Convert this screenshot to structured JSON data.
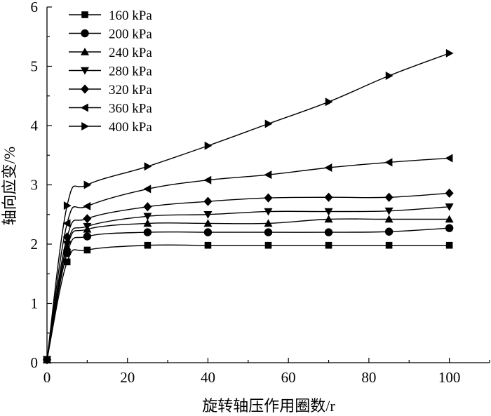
{
  "chart_data": {
    "type": "line",
    "xlabel": "旋转轴压作用圈数/r",
    "ylabel": "轴向应变/%",
    "xlim": [
      0,
      110
    ],
    "ylim": [
      0,
      6
    ],
    "xticks": [
      0,
      20,
      40,
      60,
      80,
      100
    ],
    "yticks": [
      0,
      1,
      2,
      3,
      4,
      5,
      6
    ],
    "x": [
      0,
      5,
      10,
      25,
      40,
      55,
      70,
      85,
      100
    ],
    "legend_position": "top-left",
    "series": [
      {
        "name": "160 kPa",
        "marker": "square",
        "values": [
          0.05,
          1.7,
          1.9,
          1.98,
          1.98,
          1.98,
          1.98,
          1.98,
          1.98
        ]
      },
      {
        "name": "200 kPa",
        "marker": "circle",
        "values": [
          0.05,
          1.85,
          2.13,
          2.2,
          2.2,
          2.2,
          2.2,
          2.21,
          2.27
        ]
      },
      {
        "name": "240 kPa",
        "marker": "triangle-up",
        "values": [
          0.05,
          1.95,
          2.25,
          2.35,
          2.35,
          2.35,
          2.42,
          2.42,
          2.42
        ]
      },
      {
        "name": "280 kPa",
        "marker": "triangle-down",
        "values": [
          0.05,
          2.0,
          2.3,
          2.47,
          2.5,
          2.55,
          2.55,
          2.56,
          2.63
        ]
      },
      {
        "name": "320 kPa",
        "marker": "diamond",
        "values": [
          0.05,
          2.12,
          2.43,
          2.63,
          2.72,
          2.78,
          2.79,
          2.79,
          2.86
        ]
      },
      {
        "name": "360 kPa",
        "marker": "triangle-left",
        "values": [
          0.05,
          2.35,
          2.64,
          2.93,
          3.08,
          3.17,
          3.29,
          3.38,
          3.45
        ]
      },
      {
        "name": "400 kPa",
        "marker": "triangle-right",
        "values": [
          0.05,
          2.65,
          3.0,
          3.31,
          3.66,
          4.03,
          4.4,
          4.84,
          5.22
        ]
      }
    ]
  }
}
